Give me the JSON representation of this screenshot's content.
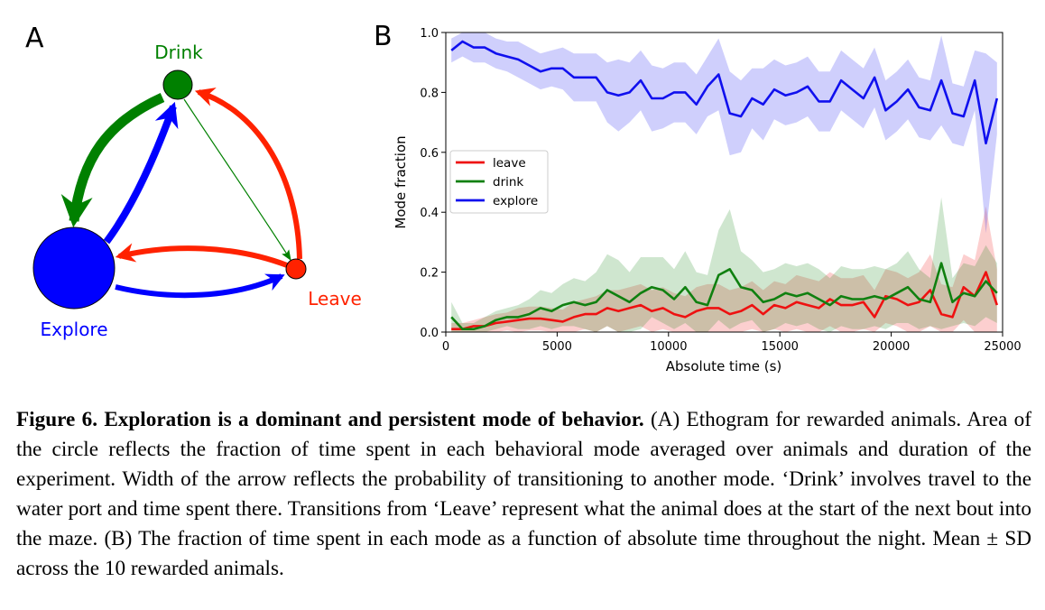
{
  "panel_a": {
    "label": "A",
    "nodes": {
      "drink": {
        "label": "Drink",
        "color": "#008000"
      },
      "explore": {
        "label": "Explore",
        "color": "#0000ff"
      },
      "leave": {
        "label": "Leave",
        "color": "#ff2200"
      }
    },
    "edge_colors": {
      "from_drink": "#008000",
      "from_explore": "#0000ff",
      "from_leave": "#ff2200"
    }
  },
  "panel_b": {
    "label": "B",
    "chart_data": {
      "type": "line",
      "xlabel": "Absolute time (s)",
      "ylabel": "Mode fraction",
      "xlim": [
        0,
        25000
      ],
      "ylim": [
        0,
        1.0
      ],
      "xticks": [
        "0",
        "5000",
        "10000",
        "15000",
        "20000",
        "25000"
      ],
      "yticks": [
        "0.0",
        "0.2",
        "0.4",
        "0.6",
        "0.8",
        "1.0"
      ],
      "legend_position": "center-left",
      "grid": false,
      "shaded_band": "mean ± SD",
      "x": [
        250,
        750,
        1250,
        1750,
        2250,
        2750,
        3250,
        3750,
        4250,
        4750,
        5250,
        5750,
        6250,
        6750,
        7250,
        7750,
        8250,
        8750,
        9250,
        9750,
        10250,
        10750,
        11250,
        11750,
        12250,
        12750,
        13250,
        13750,
        14250,
        14750,
        15250,
        15750,
        16250,
        16750,
        17250,
        17750,
        18250,
        18750,
        19250,
        19750,
        20250,
        20750,
        21250,
        21750,
        22250,
        22750,
        23250,
        23750,
        24250,
        24750
      ],
      "series": [
        {
          "name": "leave",
          "color": "#ee1111",
          "values": [
            0.01,
            0.01,
            0.02,
            0.02,
            0.03,
            0.035,
            0.04,
            0.045,
            0.045,
            0.04,
            0.035,
            0.05,
            0.06,
            0.06,
            0.08,
            0.07,
            0.08,
            0.09,
            0.07,
            0.08,
            0.06,
            0.05,
            0.07,
            0.08,
            0.08,
            0.06,
            0.07,
            0.09,
            0.06,
            0.09,
            0.08,
            0.1,
            0.09,
            0.08,
            0.11,
            0.09,
            0.09,
            0.1,
            0.05,
            0.12,
            0.11,
            0.09,
            0.1,
            0.14,
            0.06,
            0.05,
            0.15,
            0.12,
            0.2,
            0.09
          ],
          "sd": [
            0.02,
            0.02,
            0.02,
            0.03,
            0.03,
            0.03,
            0.04,
            0.04,
            0.04,
            0.04,
            0.04,
            0.05,
            0.05,
            0.06,
            0.06,
            0.07,
            0.07,
            0.07,
            0.07,
            0.07,
            0.07,
            0.07,
            0.08,
            0.08,
            0.08,
            0.08,
            0.08,
            0.08,
            0.08,
            0.08,
            0.08,
            0.09,
            0.09,
            0.09,
            0.09,
            0.09,
            0.09,
            0.09,
            0.09,
            0.09,
            0.09,
            0.09,
            0.1,
            0.12,
            0.1,
            0.1,
            0.11,
            0.12,
            0.22,
            0.12
          ]
        },
        {
          "name": "drink",
          "color": "#108010",
          "values": [
            0.05,
            0.01,
            0.01,
            0.02,
            0.04,
            0.05,
            0.05,
            0.06,
            0.08,
            0.07,
            0.09,
            0.1,
            0.09,
            0.1,
            0.14,
            0.12,
            0.1,
            0.13,
            0.15,
            0.14,
            0.11,
            0.15,
            0.1,
            0.09,
            0.19,
            0.21,
            0.15,
            0.14,
            0.1,
            0.11,
            0.13,
            0.12,
            0.13,
            0.11,
            0.09,
            0.12,
            0.11,
            0.11,
            0.12,
            0.11,
            0.13,
            0.15,
            0.11,
            0.1,
            0.23,
            0.1,
            0.13,
            0.12,
            0.17,
            0.13
          ],
          "sd": [
            0.05,
            0.02,
            0.02,
            0.03,
            0.03,
            0.03,
            0.04,
            0.05,
            0.06,
            0.06,
            0.07,
            0.08,
            0.08,
            0.1,
            0.12,
            0.12,
            0.1,
            0.12,
            0.1,
            0.11,
            0.1,
            0.12,
            0.1,
            0.1,
            0.15,
            0.2,
            0.12,
            0.1,
            0.1,
            0.1,
            0.1,
            0.1,
            0.1,
            0.1,
            0.09,
            0.1,
            0.1,
            0.1,
            0.1,
            0.1,
            0.1,
            0.12,
            0.1,
            0.08,
            0.22,
            0.08,
            0.1,
            0.1,
            0.12,
            0.1
          ]
        },
        {
          "name": "explore",
          "color": "#1010ee",
          "values": [
            0.94,
            0.97,
            0.95,
            0.95,
            0.93,
            0.92,
            0.91,
            0.89,
            0.87,
            0.88,
            0.88,
            0.85,
            0.85,
            0.85,
            0.8,
            0.79,
            0.8,
            0.84,
            0.78,
            0.78,
            0.8,
            0.8,
            0.76,
            0.82,
            0.86,
            0.73,
            0.72,
            0.78,
            0.76,
            0.81,
            0.79,
            0.8,
            0.82,
            0.77,
            0.77,
            0.84,
            0.81,
            0.78,
            0.85,
            0.74,
            0.77,
            0.81,
            0.75,
            0.74,
            0.84,
            0.73,
            0.72,
            0.84,
            0.63,
            0.78
          ],
          "sd": [
            0.04,
            0.05,
            0.05,
            0.05,
            0.05,
            0.05,
            0.06,
            0.06,
            0.06,
            0.06,
            0.07,
            0.08,
            0.08,
            0.08,
            0.1,
            0.12,
            0.1,
            0.1,
            0.11,
            0.1,
            0.1,
            0.1,
            0.1,
            0.1,
            0.12,
            0.14,
            0.12,
            0.1,
            0.12,
            0.1,
            0.1,
            0.1,
            0.1,
            0.1,
            0.1,
            0.1,
            0.1,
            0.1,
            0.1,
            0.1,
            0.1,
            0.1,
            0.1,
            0.1,
            0.15,
            0.1,
            0.1,
            0.1,
            0.3,
            0.12
          ]
        }
      ]
    }
  },
  "caption": {
    "title": "Figure 6. Exploration is a dominant and persistent mode of behavior.",
    "body": " (A) Ethogram for rewarded animals. Area of the circle reflects the fraction of time spent in each behavioral mode averaged over animals and duration of the experiment. Width of the arrow reflects the probability of transitioning to another mode. ‘Drink’ involves travel to the water port and time spent there. Transitions from ‘Leave’ represent what the animal does at the start of the next bout into the maze. (B) The fraction of time spent in each mode as a function of absolute time throughout the night. Mean ± SD across the 10 rewarded animals."
  }
}
